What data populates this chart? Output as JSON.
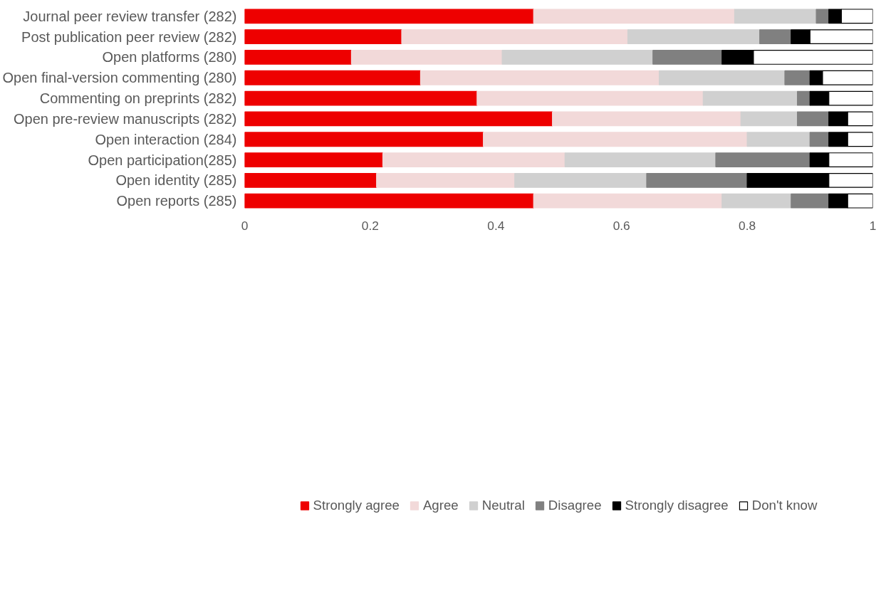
{
  "chart_data": {
    "type": "bar",
    "orientation": "horizontal",
    "stacked": true,
    "categories": [
      "Journal peer review transfer (282)",
      "Post publication peer review (282)",
      "Open platforms (280)",
      "Open final-version commenting (280)",
      "Commenting on preprints (282)",
      "Open pre-review manuscripts (282)",
      "Open interaction (284)",
      "Open participation(285)",
      "Open identity (285)",
      "Open reports (285)"
    ],
    "series": [
      {
        "name": "Strongly agree",
        "color": "#ee0000",
        "values": [
          0.46,
          0.25,
          0.17,
          0.28,
          0.37,
          0.49,
          0.38,
          0.22,
          0.21,
          0.46
        ]
      },
      {
        "name": "Agree",
        "color": "#f2d9d9",
        "values": [
          0.32,
          0.36,
          0.24,
          0.38,
          0.36,
          0.3,
          0.42,
          0.29,
          0.22,
          0.3
        ]
      },
      {
        "name": "Neutral",
        "color": "#d0d0d0",
        "values": [
          0.13,
          0.21,
          0.24,
          0.2,
          0.15,
          0.09,
          0.1,
          0.24,
          0.21,
          0.11
        ]
      },
      {
        "name": "Disagree",
        "color": "#808080",
        "values": [
          0.02,
          0.05,
          0.11,
          0.04,
          0.02,
          0.05,
          0.03,
          0.15,
          0.16,
          0.06
        ]
      },
      {
        "name": "Strongly disagree",
        "color": "#000000",
        "values": [
          0.02,
          0.03,
          0.05,
          0.02,
          0.03,
          0.03,
          0.03,
          0.03,
          0.13,
          0.03
        ]
      },
      {
        "name": "Don't know",
        "color": "#ffffff",
        "values": [
          0.05,
          0.1,
          0.19,
          0.08,
          0.07,
          0.04,
          0.04,
          0.07,
          0.07,
          0.04
        ]
      }
    ],
    "xlim": [
      0,
      1
    ],
    "xticks": [
      0,
      0.2,
      0.4,
      0.6,
      0.8,
      1
    ],
    "grid": false,
    "legend": "bottom"
  }
}
